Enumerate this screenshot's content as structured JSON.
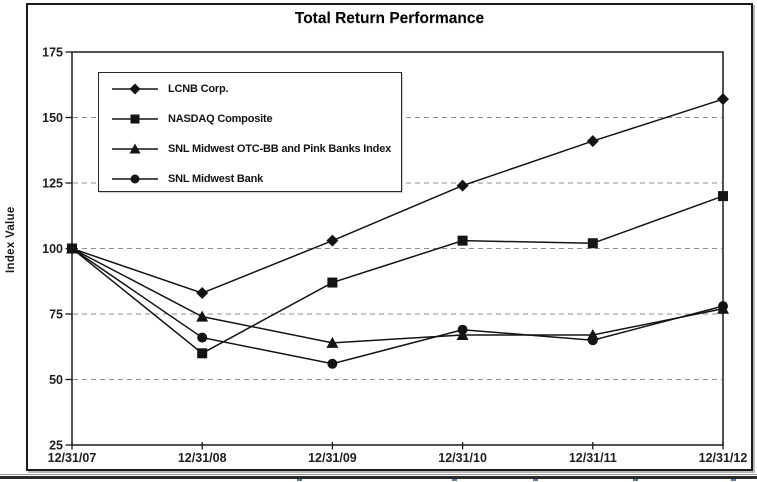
{
  "chart_data": {
    "type": "line",
    "title": "Total Return Performance",
    "ylabel": "Index Value",
    "xlabel": "",
    "categories": [
      "12/31/07",
      "12/31/08",
      "12/31/09",
      "12/31/10",
      "12/31/11",
      "12/31/12"
    ],
    "series": [
      {
        "name": "LCNB Corp.",
        "marker": "diamond",
        "values": [
          100,
          83,
          103,
          124,
          141,
          157
        ]
      },
      {
        "name": "NASDAQ Composite",
        "marker": "square",
        "values": [
          100,
          60,
          87,
          103,
          102,
          120
        ]
      },
      {
        "name": "SNL Midwest OTC-BB and Pink Banks Index",
        "marker": "triangle",
        "values": [
          100,
          74,
          64,
          67,
          67,
          77
        ]
      },
      {
        "name": "SNL Midwest Bank",
        "marker": "circle",
        "values": [
          100,
          66,
          56,
          69,
          65,
          78
        ]
      }
    ],
    "ylim": [
      25,
      175
    ],
    "ytick_step": 25,
    "grid": "horizontal-dashed",
    "legend_position": "upper-left-inside",
    "colors": {
      "series": "#141414",
      "grid": "#8f8f8f",
      "frame": "#1b1b1b",
      "footer_rule": "#2a2a2a",
      "table_edge_ticks": "#5b79b2"
    }
  }
}
